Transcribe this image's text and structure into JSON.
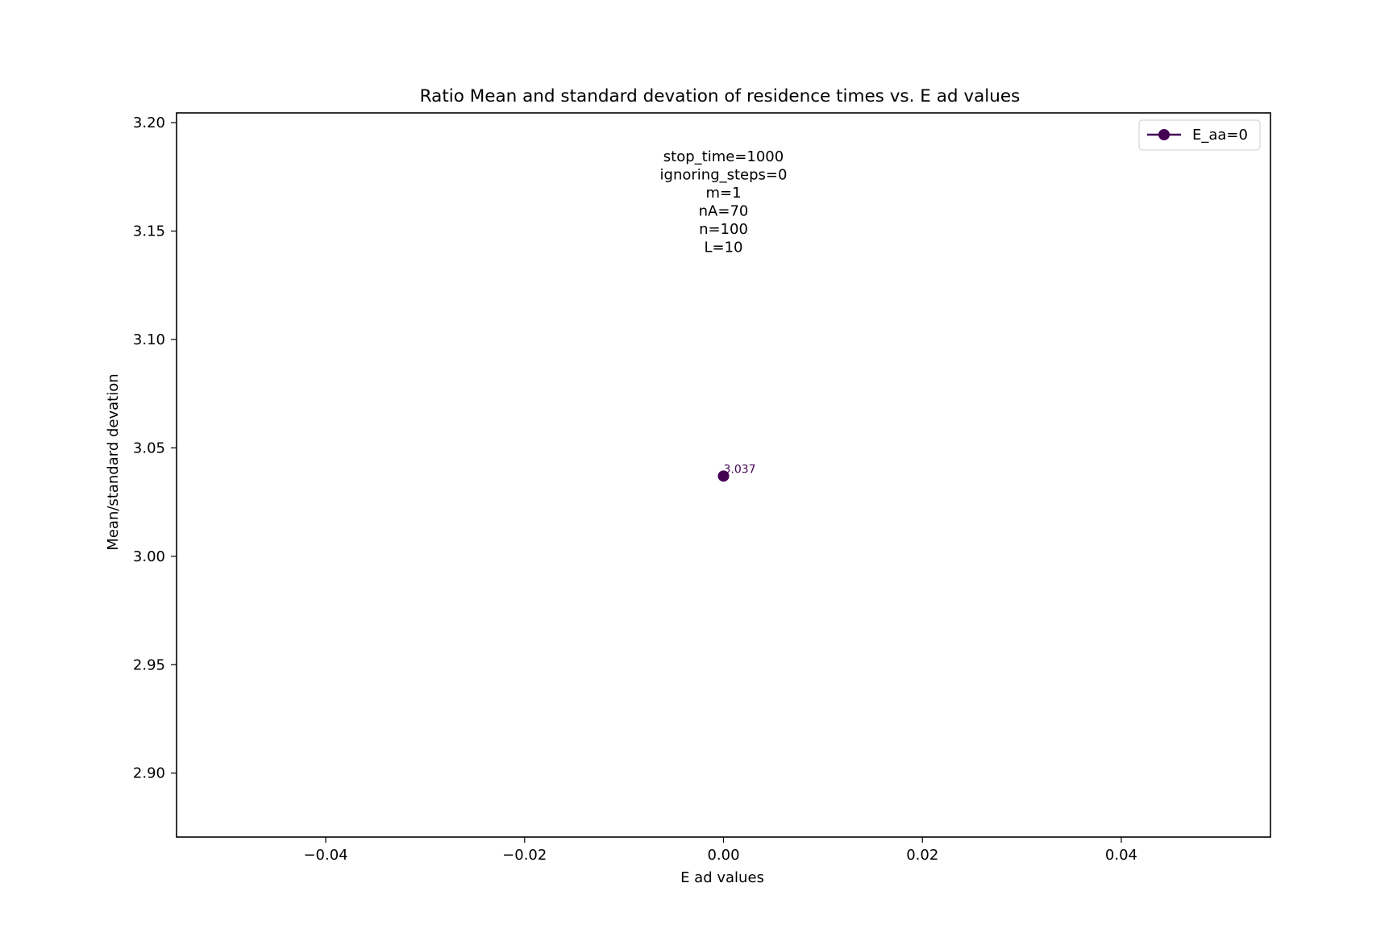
{
  "chart_data": {
    "type": "line",
    "title": "Ratio Mean and standard devation of residence times vs. E ad values",
    "xlabel": "E ad values",
    "ylabel": "Mean/standard devation",
    "xlim": [
      -0.055,
      0.055
    ],
    "ylim": [
      2.8705,
      3.2045
    ],
    "x_ticks": [
      -0.04,
      -0.02,
      0.0,
      0.02,
      0.04
    ],
    "x_tick_labels": [
      "−0.04",
      "−0.02",
      "0.00",
      "0.02",
      "0.04"
    ],
    "y_ticks": [
      2.9,
      2.95,
      3.0,
      3.05,
      3.1,
      3.15,
      3.2
    ],
    "y_tick_labels": [
      "2.90",
      "2.95",
      "3.00",
      "3.05",
      "3.10",
      "3.15",
      "3.20"
    ],
    "grid": false,
    "legend_position": "top-right",
    "series": [
      {
        "name": "E_aa=0",
        "color": "#440154",
        "marker": "circle",
        "points": [
          {
            "x": 0.0,
            "y": 3.037,
            "label": "3.037"
          }
        ]
      }
    ],
    "annotation_lines": [
      "stop_time=1000",
      "ignoring_steps=0",
      "m=1",
      "nA=70",
      "n=100",
      "L=10"
    ]
  }
}
